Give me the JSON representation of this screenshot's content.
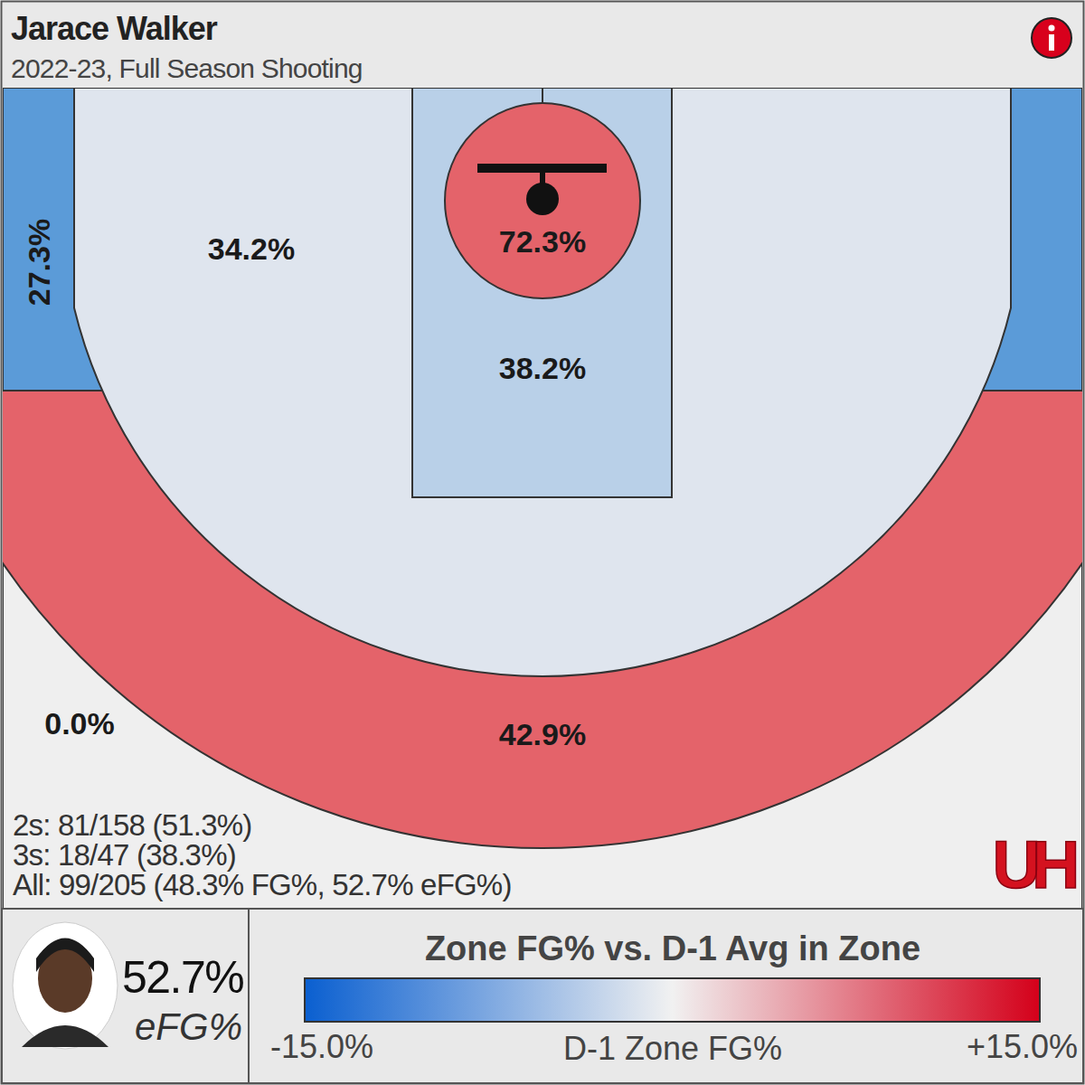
{
  "chart_data": {
    "type": "shot_chart",
    "title": "Jarace Walker",
    "subtitle": "2022-23, Full Season Shooting",
    "values": [
      27.3,
      34.2,
      72.3,
      38.2,
      42.9,
      0.0,
      null
    ],
    "value_labels": [
      "27.3%",
      "34.2%",
      "72.3%",
      "38.2%",
      "42.9%",
      "0.0%",
      null
    ],
    "colors": [
      "#5b9bd8",
      "#dfe5ee",
      "#e4636a",
      "#b9d0e8",
      "#e4636a",
      "#efefef",
      "#5b9bd8"
    ],
    "data_labels": true,
    "stats": [
      "2s: 81/158 (51.3%)",
      "3s: 18/47 (38.3%)",
      "All: 99/205 (48.3% FG%, 52.7% eFG%)"
    ],
    "logo": "UH",
    "efg_label": "52.7%",
    "efg_caption": "eFG%",
    "colorbar": {
      "title": "Zone FG% vs. D-1 Avg in Zone",
      "caption": "D-1 Zone FG%",
      "range": [
        -15,
        15
      ],
      "ticks": [
        {
          "value": -15,
          "label": "-15.0%"
        },
        {
          "value": 15,
          "label": "+15.0%"
        }
      ]
    }
  }
}
